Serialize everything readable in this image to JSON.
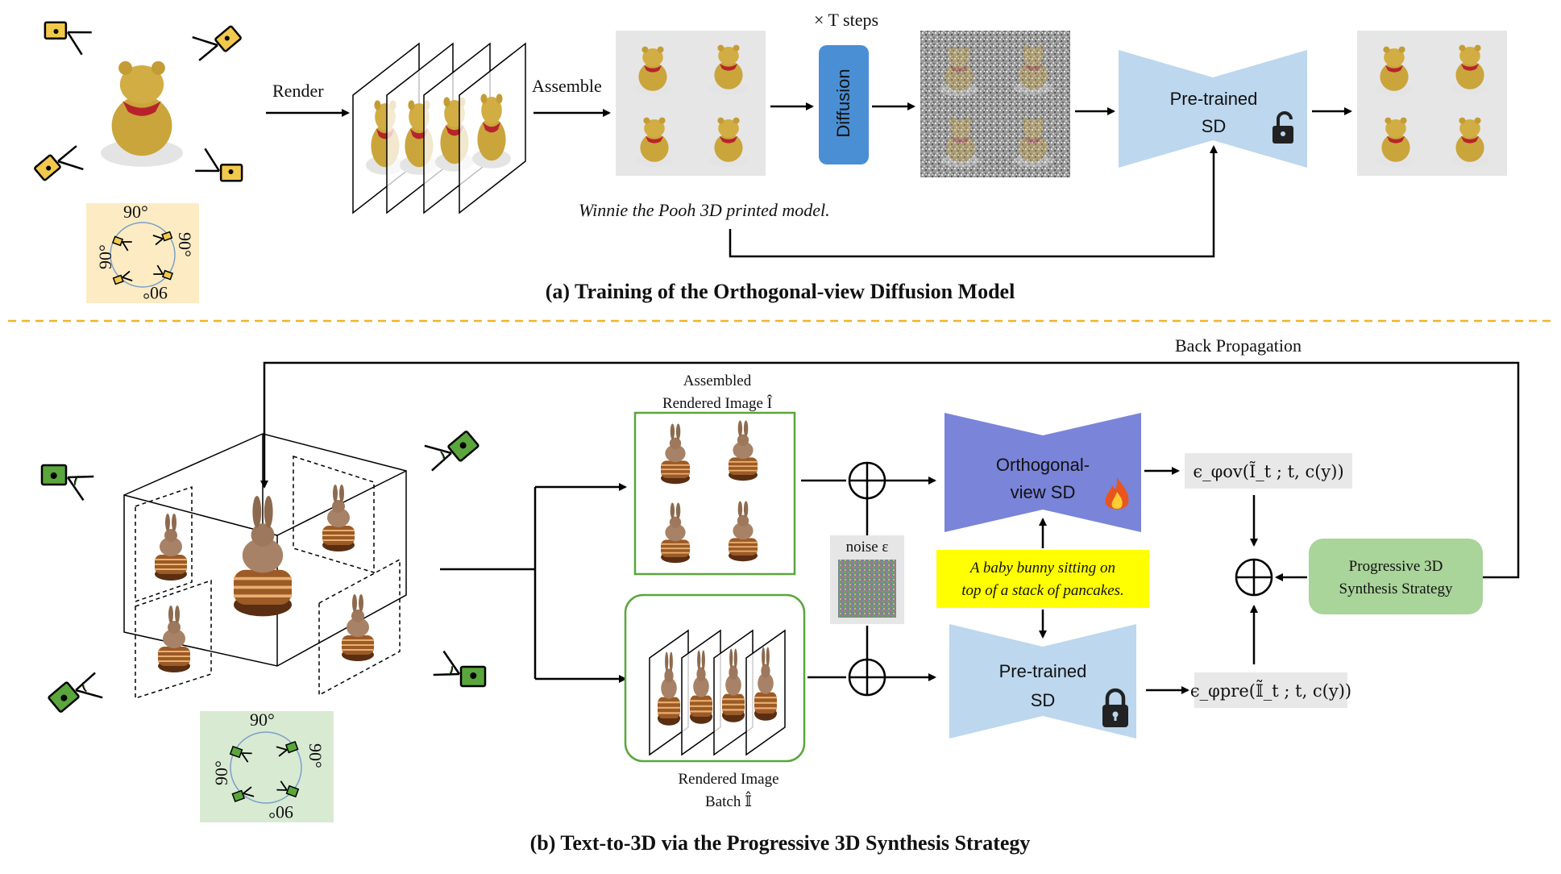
{
  "part_a": {
    "caption": "(a) Training of the Orthogonal-view Diffusion Model",
    "render_label": "Render",
    "assemble_label": "Assemble",
    "steps_label": "× T steps",
    "diffusion_label": "Diffusion",
    "pretrained_label_1": "Pre-trained",
    "pretrained_label_2": "SD",
    "prompt": "Winnie the Pooh 3D printed model.",
    "angles": [
      "90°",
      "90°",
      "90°",
      "90°"
    ]
  },
  "part_b": {
    "caption": "(b) Text-to-3D via the Progressive 3D Synthesis Strategy",
    "back_propagation": "Back Propagation",
    "assembled_label_1": "Assembled",
    "assembled_label_2": "Rendered Image Î",
    "noise_label": "noise ε",
    "orthogonal_label_1": "Orthogonal-",
    "orthogonal_label_2": "view SD",
    "pretrained_label_1": "Pre-trained",
    "pretrained_label_2": "SD",
    "prompt_line_1": "A baby bunny sitting on",
    "prompt_line_2": "top of a stack of pancakes.",
    "progressive_label_1": "Progressive 3D",
    "progressive_label_2": "Synthesis Strategy",
    "eps_ov": "ϵ_φov(Ĩ_t ; t, c(y))",
    "eps_pre": "ϵ_φpre(𝕀̃_t ; t, c(y))",
    "batch_label_1": "Rendered Image",
    "batch_label_2": "Batch 𝕀̂",
    "angles": [
      "90°",
      "90°",
      "90°",
      "90°"
    ]
  },
  "colors": {
    "diffusion_box": "#4a8fd4",
    "pretrained_sd": "#bcd7ee",
    "orthogonal_sd": "#7a84d8",
    "progressive_box": "#a9d49a",
    "prompt_highlight": "#ffff00",
    "angle_bg_a": "#fdebc4",
    "angle_bg_b": "#d9ead3",
    "divider": "#f0b429",
    "camera_a": "#f2c94c",
    "camera_b": "#5aa63c"
  },
  "icons": [
    "camera-icon",
    "unlock-icon",
    "lock-icon",
    "fire-icon",
    "oplus-icon"
  ]
}
